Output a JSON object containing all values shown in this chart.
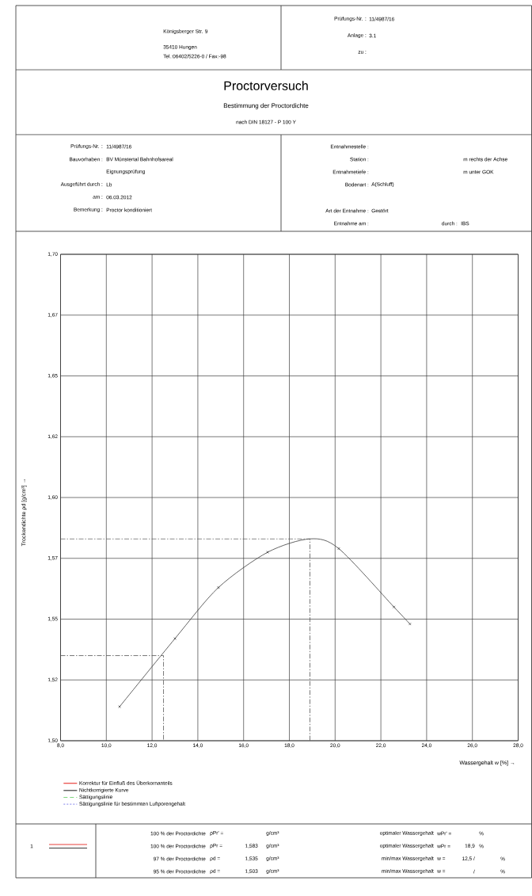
{
  "chart_data": {
    "type": "line",
    "title": "Proctorversuch",
    "subtitle": "Bestimmung der Proctordichte",
    "xlabel": "Wassergehalt w [%] →",
    "ylabel": "Trockendichte ρd [g/cm³]       →",
    "xlim": [
      8,
      28
    ],
    "ylim": [
      1.5,
      1.7
    ],
    "xticks": [
      {
        "value": 8,
        "label": "8,0"
      },
      {
        "value": 10,
        "label": "10,0"
      },
      {
        "value": 12,
        "label": "12,0"
      },
      {
        "value": 14,
        "label": "14,0"
      },
      {
        "value": 16,
        "label": "16,0"
      },
      {
        "value": 18,
        "label": "18,0"
      },
      {
        "value": 20,
        "label": "20,0"
      },
      {
        "value": 22,
        "label": "22,0"
      },
      {
        "value": 24,
        "label": "24,0"
      },
      {
        "value": 26,
        "label": "26,0"
      },
      {
        "value": 28,
        "label": "28,0"
      }
    ],
    "yticks": [
      {
        "value": 1.5,
        "label": "1,50"
      },
      {
        "value": 1.525,
        "label": "1,52"
      },
      {
        "value": 1.55,
        "label": "1,55"
      },
      {
        "value": 1.575,
        "label": "1,57"
      },
      {
        "value": 1.6,
        "label": "1,60"
      },
      {
        "value": 1.625,
        "label": "1,62"
      },
      {
        "value": 1.65,
        "label": "1,65"
      },
      {
        "value": 1.675,
        "label": "1,67"
      },
      {
        "value": 1.7,
        "label": "1,70"
      }
    ],
    "grid": true,
    "legend": "bottom",
    "series": [
      {
        "name": "Korrektur für Einfluß des Überkornanteils",
        "color": "#e8413c"
      },
      {
        "name": "Nichtkorrigierte Kurve",
        "color": "#3c3c3c",
        "x": [
          10.58,
          13.0,
          14.9,
          17.05,
          18.9,
          20.16,
          22.57,
          23.27
        ],
        "values": [
          1.514,
          1.542,
          1.563,
          1.5775,
          1.583,
          1.579,
          1.555,
          1.548
        ]
      },
      {
        "name": "Sättigungslinie",
        "color": "#7fd67f",
        "line_style": "dashed"
      },
      {
        "name": "Sättigungslinie für bestimmten Luftporengehalt",
        "color": "#9b9bef",
        "line_style": "dotted"
      },
      {
        "type": "scatter",
        "color": "#3c3c3c",
        "marker": "cross",
        "x": [
          10.58,
          13.0,
          14.9,
          17.05,
          20.16,
          22.57,
          23.27
        ],
        "values": [
          1.514,
          1.542,
          1.563,
          1.5775,
          1.579,
          1.555,
          1.548
        ]
      },
      {
        "color": "#555555",
        "line_style": "dashdot",
        "x": [
          8,
          18.9,
          18.9
        ],
        "values": [
          1.583,
          1.583,
          1.5
        ]
      },
      {
        "color": "#555555",
        "line_style": "dashdot",
        "x": [
          8,
          12.5,
          12.5
        ],
        "values": [
          1.535,
          1.535,
          1.5
        ]
      }
    ],
    "annotations": [
      "Königsberger Str. 9",
      "35410 Hungen",
      "Tel.:06402/5226-0 / Fax:-98",
      "Prüfungs-Nr. :",
      "11/4987/16",
      "Anlage :",
      "3.1",
      "zu :",
      "nach DIN 18127 - P 100 Y",
      "Prüfungs-Nr. :",
      "11/4987/16",
      "Bauvorhaben :",
      "BV Münstertal Bahnhofsareal",
      "Eignungsprüfung",
      "Ausgeführt durch :",
      "Lb",
      "am :",
      "06.03.2012",
      "Bemerkung :",
      "Proctor konditioniert",
      "Entnahmestelle :",
      "Station :",
      "m rechts der Achse",
      "Entnahmetiefe :",
      "m unter GOK",
      "Bodenart :",
      "A(Schluff)",
      "Art der Entnahme :",
      "Gestört",
      "Entnahme am :",
      "durch :",
      "IBS",
      "1",
      "100 % der Proctordichte",
      "ρPr' =",
      "g/cm³",
      "100 % der Proctordichte",
      "ρPr =",
      "1,583",
      "g/cm³",
      "97 % der Proctordichte",
      "ρd =",
      "1,535",
      "g/cm³",
      "95 % der Proctordichte",
      "ρd =",
      "1,503",
      "g/cm³",
      "optimaler Wassergehalt",
      "wPr' =",
      "%",
      "optimaler Wassergehalt",
      "wPr =",
      "18,9",
      "%",
      "min/max Wassergehalt",
      "w =",
      "12,5 /",
      "%",
      "min/max Wassergehalt",
      "w =",
      "/",
      "%"
    ]
  }
}
